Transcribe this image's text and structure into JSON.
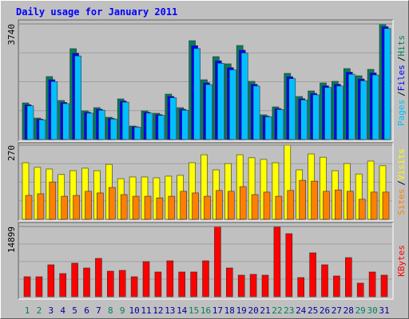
{
  "chart_data": [
    {
      "type": "bar",
      "title": "Daily usage for January 2011",
      "ylim": [
        0,
        3740
      ],
      "yticks": [
        3740
      ],
      "legend_separator": "/",
      "series": [
        {
          "name": "Hits",
          "color": "#00805c",
          "values": [
            1186,
            696,
            2038,
            1264,
            2940,
            929,
            1032,
            722,
            1315,
            438,
            929,
            851,
            1470,
            1032,
            3198,
            1934,
            2682,
            2450,
            3043,
            1883,
            800,
            1057,
            2141,
            1393,
            1573,
            1831,
            1883,
            2296,
            2063,
            2270,
            3740
          ]
        },
        {
          "name": "Files",
          "color": "#0000ff",
          "values": [
            1127,
            661,
            1936,
            1201,
            2793,
            883,
            980,
            686,
            1249,
            416,
            883,
            808,
            1397,
            980,
            3038,
            1837,
            2548,
            2328,
            2891,
            1789,
            760,
            1004,
            2034,
            1323,
            1494,
            1739,
            1789,
            2181,
            1960,
            2157,
            3650
          ]
        },
        {
          "name": "Pages",
          "color": "#00c0ff",
          "values": [
            1091,
            640,
            1875,
            1163,
            2705,
            855,
            949,
            664,
            1210,
            403,
            855,
            783,
            1352,
            949,
            2942,
            1779,
            2467,
            2254,
            2800,
            1732,
            736,
            972,
            1970,
            1282,
            1447,
            1685,
            1732,
            2112,
            1898,
            2088,
            3590
          ]
        }
      ]
    },
    {
      "type": "bar",
      "ylim": [
        0,
        270
      ],
      "yticks": [
        270
      ],
      "legend_separator": "/",
      "series": [
        {
          "name": "Visits",
          "color": "#ffff00",
          "values": [
            206,
            189,
            183,
            163,
            177,
            186,
            177,
            200,
            148,
            154,
            154,
            151,
            157,
            160,
            206,
            235,
            180,
            203,
            235,
            224,
            218,
            206,
            270,
            180,
            238,
            226,
            177,
            203,
            165,
            212,
            195
          ]
        },
        {
          "name": "Sites",
          "color": "#ff8000",
          "values": [
            87,
            93,
            136,
            84,
            87,
            102,
            96,
            116,
            90,
            84,
            84,
            78,
            84,
            102,
            96,
            84,
            105,
            102,
            119,
            90,
            99,
            84,
            105,
            142,
            139,
            102,
            107,
            102,
            73,
            99,
            99
          ]
        }
      ]
    },
    {
      "type": "bar",
      "ylim": [
        0,
        14899
      ],
      "yticks": [
        14899
      ],
      "categories": [
        "1",
        "2",
        "3",
        "4",
        "5",
        "6",
        "7",
        "8",
        "9",
        "10",
        "11",
        "12",
        "13",
        "14",
        "15",
        "16",
        "17",
        "18",
        "19",
        "20",
        "21",
        "22",
        "23",
        "24",
        "25",
        "26",
        "27",
        "28",
        "29",
        "30",
        "31"
      ],
      "category_colors": [
        "#00805c",
        "#00805c",
        "#0000a0",
        "#0000a0",
        "#0000a0",
        "#0000a0",
        "#0000a0",
        "#00805c",
        "#00805c",
        "#0000a0",
        "#0000a0",
        "#0000a0",
        "#0000a0",
        "#0000a0",
        "#00805c",
        "#00805c",
        "#0000a0",
        "#0000a0",
        "#0000a0",
        "#0000a0",
        "#0000a0",
        "#00805c",
        "#00805c",
        "#0000a0",
        "#0000a0",
        "#0000a0",
        "#0000a0",
        "#0000a0",
        "#00805c",
        "#00805c",
        "#0000a0"
      ],
      "series": [
        {
          "name": "KBytes",
          "color": "#ff0000",
          "values": [
            4233,
            4233,
            6772,
            4910,
            7111,
            6095,
            8127,
            5418,
            5587,
            4233,
            7449,
            5248,
            7619,
            5248,
            5248,
            7619,
            14899,
            6095,
            4571,
            4741,
            4571,
            14760,
            13375,
            4063,
            9312,
            6772,
            4402,
            8296,
            2878,
            5248,
            4571
          ]
        }
      ]
    }
  ]
}
